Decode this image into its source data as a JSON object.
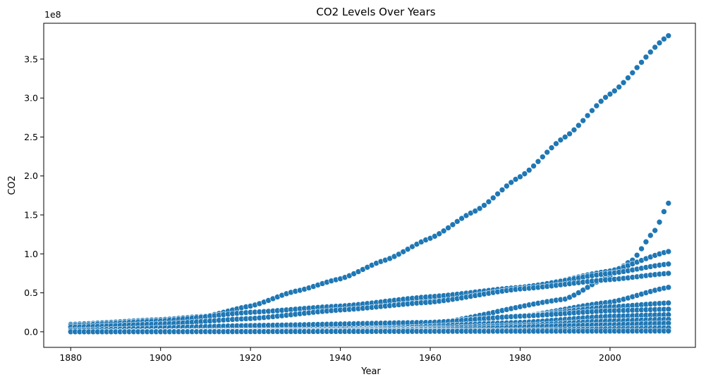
{
  "chart_data": {
    "type": "scatter",
    "title": "CO2 Levels Over Years",
    "xlabel": "Year",
    "ylabel": "CO2",
    "y_offset_label": "1e8",
    "xlim": [
      1874,
      2019
    ],
    "ylim": [
      -0.2,
      3.96
    ],
    "y_scale_note": "values in units of 1e8",
    "x_ticks": [
      1880,
      1900,
      1920,
      1940,
      1960,
      1980,
      2000
    ],
    "y_ticks": [
      0.0,
      0.5,
      1.0,
      1.5,
      2.0,
      2.5,
      3.0,
      3.5
    ],
    "y_tick_labels": [
      "0.0",
      "0.5",
      "1.0",
      "1.5",
      "2.0",
      "2.5",
      "3.0",
      "3.5"
    ],
    "grid": false,
    "marker_color": "#1f77b4",
    "x_start": 1880,
    "x_end": 2013,
    "series_profiles": [
      {
        "keys": [
          [
            1880,
            0.095
          ],
          [
            1900,
            0.155
          ],
          [
            1910,
            0.2
          ],
          [
            1920,
            0.33
          ],
          [
            1930,
            0.52
          ],
          [
            1940,
            0.68
          ],
          [
            1950,
            0.92
          ],
          [
            1960,
            1.2
          ],
          [
            1970,
            1.55
          ],
          [
            1980,
            1.99
          ],
          [
            1990,
            2.5
          ],
          [
            2000,
            3.05
          ],
          [
            2013,
            3.8
          ]
        ]
      },
      {
        "keys": [
          [
            1880,
            0.01
          ],
          [
            1960,
            0.1
          ],
          [
            1990,
            0.42
          ],
          [
            2000,
            0.72
          ],
          [
            2005,
            0.92
          ],
          [
            2010,
            1.3
          ],
          [
            2013,
            1.65
          ]
        ]
      },
      {
        "keys": [
          [
            1880,
            0.05
          ],
          [
            1900,
            0.12
          ],
          [
            1920,
            0.25
          ],
          [
            1940,
            0.32
          ],
          [
            1960,
            0.42
          ],
          [
            1980,
            0.55
          ],
          [
            2000,
            0.78
          ],
          [
            2013,
            1.03
          ]
        ]
      },
      {
        "keys": [
          [
            1880,
            0.08
          ],
          [
            1900,
            0.14
          ],
          [
            1920,
            0.25
          ],
          [
            1940,
            0.33
          ],
          [
            1960,
            0.45
          ],
          [
            1980,
            0.57
          ],
          [
            2000,
            0.75
          ],
          [
            2013,
            0.87
          ]
        ]
      },
      {
        "keys": [
          [
            1880,
            0.06
          ],
          [
            1900,
            0.1
          ],
          [
            1920,
            0.17
          ],
          [
            1940,
            0.28
          ],
          [
            1960,
            0.38
          ],
          [
            1980,
            0.55
          ],
          [
            2000,
            0.67
          ],
          [
            2013,
            0.75
          ]
        ]
      },
      {
        "keys": [
          [
            1880,
            0.01
          ],
          [
            1920,
            0.05
          ],
          [
            1960,
            0.12
          ],
          [
            1980,
            0.2
          ],
          [
            2000,
            0.38
          ],
          [
            2013,
            0.57
          ]
        ]
      },
      {
        "keys": [
          [
            1880,
            0.01
          ],
          [
            1920,
            0.03
          ],
          [
            1960,
            0.08
          ],
          [
            1980,
            0.2
          ],
          [
            2000,
            0.32
          ],
          [
            2013,
            0.37
          ]
        ]
      },
      {
        "keys": [
          [
            1880,
            0.02
          ],
          [
            1920,
            0.08
          ],
          [
            1960,
            0.12
          ],
          [
            1980,
            0.2
          ],
          [
            2000,
            0.27
          ],
          [
            2013,
            0.29
          ]
        ]
      },
      {
        "keys": [
          [
            1880,
            0.0
          ],
          [
            1940,
            0.02
          ],
          [
            1980,
            0.12
          ],
          [
            2000,
            0.2
          ],
          [
            2013,
            0.22
          ]
        ]
      },
      {
        "keys": [
          [
            1880,
            0.0
          ],
          [
            1940,
            0.01
          ],
          [
            1980,
            0.08
          ],
          [
            2000,
            0.14
          ],
          [
            2013,
            0.16
          ]
        ]
      },
      {
        "keys": [
          [
            1880,
            0.0
          ],
          [
            1960,
            0.03
          ],
          [
            2000,
            0.09
          ],
          [
            2013,
            0.11
          ]
        ]
      },
      {
        "keys": [
          [
            1880,
            0.0
          ],
          [
            1980,
            0.02
          ],
          [
            2013,
            0.05
          ]
        ]
      },
      {
        "keys": [
          [
            1880,
            0.0
          ],
          [
            2013,
            0.01
          ]
        ]
      }
    ]
  }
}
